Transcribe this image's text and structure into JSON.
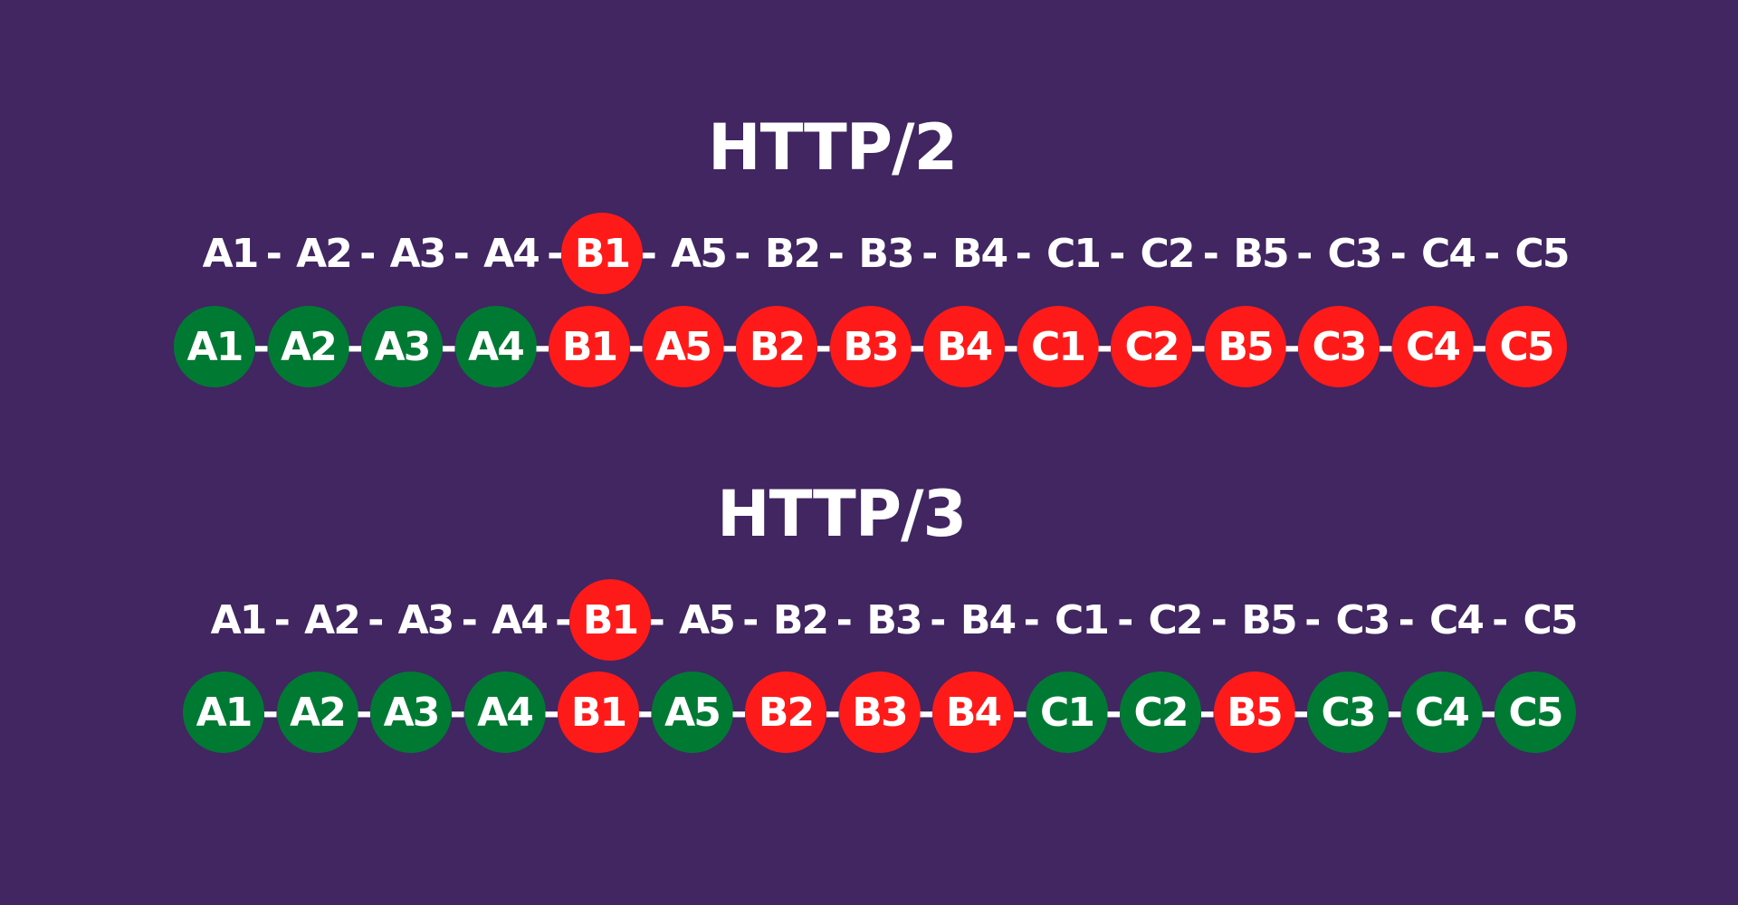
{
  "colors": {
    "background": "#412661",
    "received": "#007a33",
    "blocked": "#ff1a1a",
    "text": "#ffffff"
  },
  "separator": "-",
  "sections": [
    {
      "title": "HTTP/2",
      "packets": [
        "A1",
        "A2",
        "A3",
        "A4",
        "B1",
        "A5",
        "B2",
        "B3",
        "B4",
        "C1",
        "C2",
        "B5",
        "C3",
        "C4",
        "C5"
      ],
      "lost_packet": "B1",
      "states": [
        "received",
        "received",
        "received",
        "received",
        "blocked",
        "blocked",
        "blocked",
        "blocked",
        "blocked",
        "blocked",
        "blocked",
        "blocked",
        "blocked",
        "blocked",
        "blocked"
      ]
    },
    {
      "title": "HTTP/3",
      "packets": [
        "A1",
        "A2",
        "A3",
        "A4",
        "B1",
        "A5",
        "B2",
        "B3",
        "B4",
        "C1",
        "C2",
        "B5",
        "C3",
        "C4",
        "C5"
      ],
      "lost_packet": "B1",
      "states": [
        "received",
        "received",
        "received",
        "received",
        "blocked",
        "received",
        "blocked",
        "blocked",
        "blocked",
        "received",
        "received",
        "blocked",
        "received",
        "received",
        "received"
      ]
    }
  ]
}
